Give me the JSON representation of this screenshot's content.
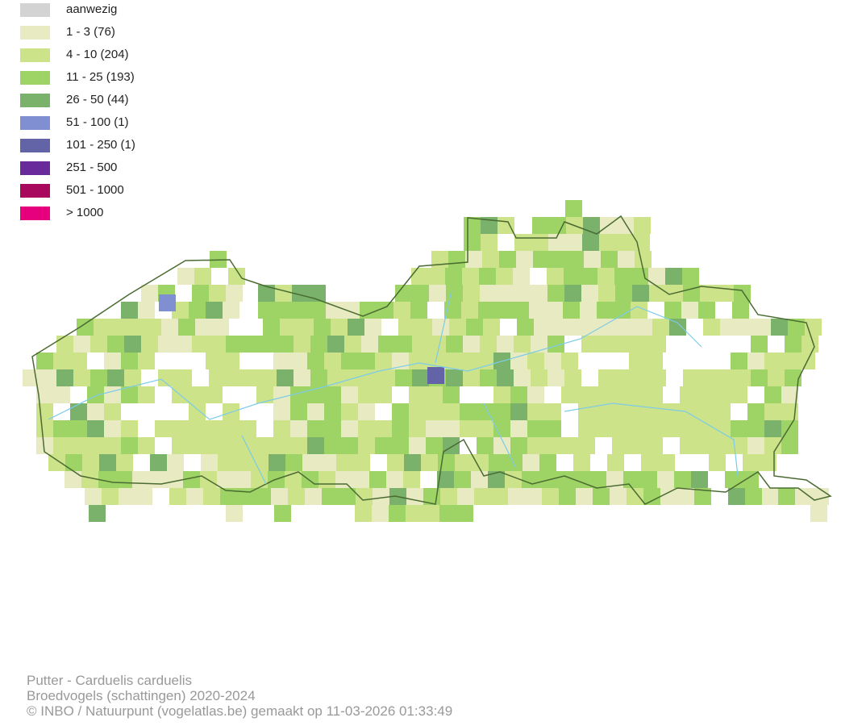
{
  "legend": [
    {
      "label": "aanwezig",
      "color": "#d3d3d3"
    },
    {
      "label": "1 - 3 (76)",
      "color": "#e8ebc1"
    },
    {
      "label": "4 - 10 (204)",
      "color": "#cde38a"
    },
    {
      "label": "11 - 25 (193)",
      "color": "#9ed465"
    },
    {
      "label": "26 - 50 (44)",
      "color": "#7ab26b"
    },
    {
      "label": "51 - 100 (1)",
      "color": "#7f8fd1"
    },
    {
      "label": "101 - 250 (1)",
      "color": "#6363a8"
    },
    {
      "label": "251 - 500",
      "color": "#68299a"
    },
    {
      "label": "501 - 1000",
      "color": "#a8095c"
    },
    {
      "label": "> 1000",
      "color": "#e6007e"
    }
  ],
  "footer": {
    "title": "Putter - Carduelis carduelis",
    "subtitle": "Broedvogels (schattingen) 2020-2024",
    "credit": "© INBO / Natuurpunt (vogelatlas.be) gemaakt op 11-03-2026 01:33:49"
  }
}
